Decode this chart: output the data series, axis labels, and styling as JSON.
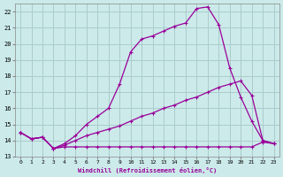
{
  "xlabel": "Windchill (Refroidissement éolien,°C)",
  "xlim": [
    -0.5,
    23.5
  ],
  "ylim": [
    13,
    22.5
  ],
  "yticks": [
    13,
    14,
    15,
    16,
    17,
    18,
    19,
    20,
    21,
    22
  ],
  "xticks": [
    0,
    1,
    2,
    3,
    4,
    5,
    6,
    7,
    8,
    9,
    10,
    11,
    12,
    13,
    14,
    15,
    16,
    17,
    18,
    19,
    20,
    21,
    22,
    23
  ],
  "background_color": "#cceaea",
  "grid_color": "#aacccc",
  "line_color": "#990099",
  "line1_x": [
    0,
    1,
    2,
    3,
    4,
    5,
    6,
    7,
    8,
    9,
    10,
    11,
    12,
    13,
    14,
    15,
    16,
    17,
    18,
    19,
    20,
    21,
    22,
    23
  ],
  "line1_y": [
    14.5,
    14.1,
    14.2,
    13.5,
    13.6,
    13.6,
    13.6,
    13.6,
    13.6,
    13.6,
    13.6,
    13.6,
    13.6,
    13.6,
    13.6,
    13.6,
    13.6,
    13.6,
    13.6,
    13.6,
    13.6,
    13.6,
    13.9,
    13.8
  ],
  "line2_x": [
    0,
    1,
    2,
    3,
    4,
    5,
    6,
    7,
    8,
    9,
    10,
    11,
    12,
    13,
    14,
    15,
    16,
    17,
    18,
    19,
    20,
    21,
    22,
    23
  ],
  "line2_y": [
    14.5,
    14.1,
    14.2,
    13.5,
    13.7,
    14.0,
    14.3,
    14.5,
    14.7,
    14.9,
    15.2,
    15.5,
    15.7,
    16.0,
    16.2,
    16.5,
    16.7,
    17.0,
    17.3,
    17.5,
    17.7,
    16.8,
    14.0,
    13.8
  ],
  "line3_x": [
    0,
    1,
    2,
    3,
    4,
    5,
    6,
    7,
    8,
    9,
    10,
    11,
    12,
    13,
    14,
    15,
    16,
    17,
    18,
    19,
    20,
    21,
    22,
    23
  ],
  "line3_y": [
    14.5,
    14.1,
    14.2,
    13.5,
    13.8,
    14.3,
    15.0,
    15.5,
    16.0,
    17.5,
    19.5,
    20.3,
    20.5,
    20.8,
    21.1,
    21.3,
    22.2,
    22.3,
    21.2,
    18.5,
    16.7,
    15.2,
    14.0,
    13.8
  ]
}
